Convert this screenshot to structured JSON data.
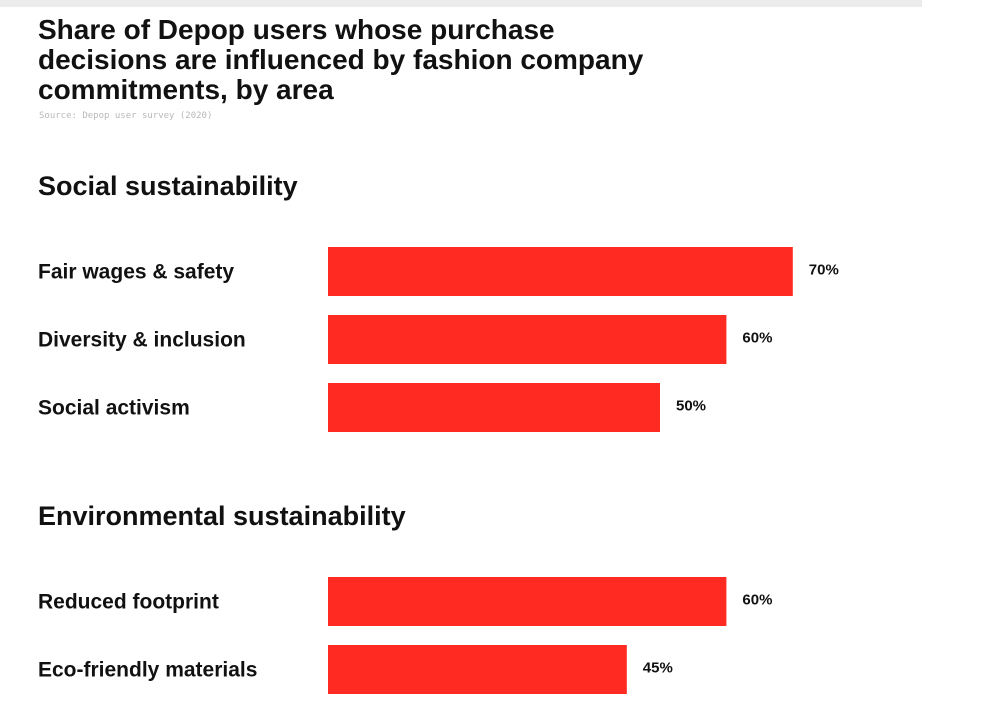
{
  "title": "Share of Depop users whose purchase decisions are influenced by fashion company commitments, by area",
  "source": "Source: Depop user survey (2020)",
  "colors": {
    "bar": "#ff2a22",
    "text": "#111111"
  },
  "chart_data": [
    {
      "type": "bar",
      "orientation": "horizontal",
      "group_title": "Social sustainability",
      "categories": [
        "Fair wages & safety",
        "Diversity & inclusion",
        "Social activism"
      ],
      "values": [
        70,
        60,
        50
      ],
      "value_labels": [
        "70%",
        "60%",
        "50%"
      ],
      "unit": "%"
    },
    {
      "type": "bar",
      "orientation": "horizontal",
      "group_title": "Environmental sustainability",
      "categories": [
        "Reduced footprint",
        "Eco-friendly materials"
      ],
      "values": [
        60,
        45
      ],
      "value_labels": [
        "60%",
        "45%"
      ],
      "unit": "%"
    }
  ]
}
